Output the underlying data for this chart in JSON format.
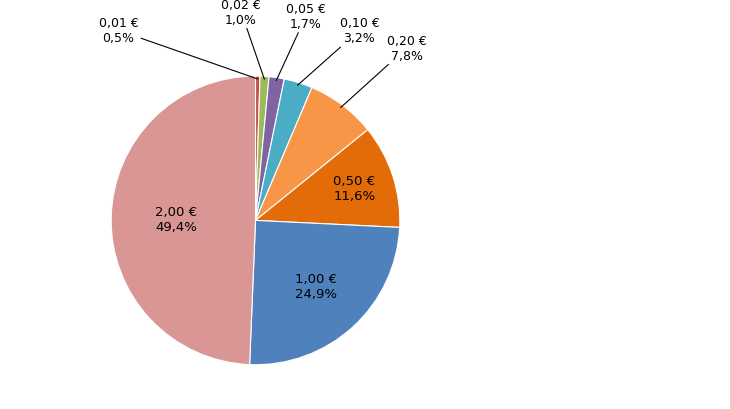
{
  "labels": [
    "0,01 €",
    "0,02 €",
    "0,05 €",
    "0,10 €",
    "0,20 €",
    "0,50 €",
    "1,00 €",
    "2,00 €"
  ],
  "percentages": [
    "0,5%",
    "1,0%",
    "1,7%",
    "3,2%",
    "7,8%",
    "11,6%",
    "24,9%",
    "49,4%"
  ],
  "values": [
    0.5,
    1.0,
    1.7,
    3.2,
    7.8,
    11.6,
    24.9,
    49.4
  ],
  "colors": [
    "#c0504d",
    "#9bbb59",
    "#8064a2",
    "#4bacc6",
    "#4bacc6",
    "#e36c09",
    "#4f81bd",
    "#d99694"
  ],
  "startangle": 90,
  "background_color": "#ffffff",
  "fontsize_labels": 9,
  "fontsize_internal": 9.5
}
